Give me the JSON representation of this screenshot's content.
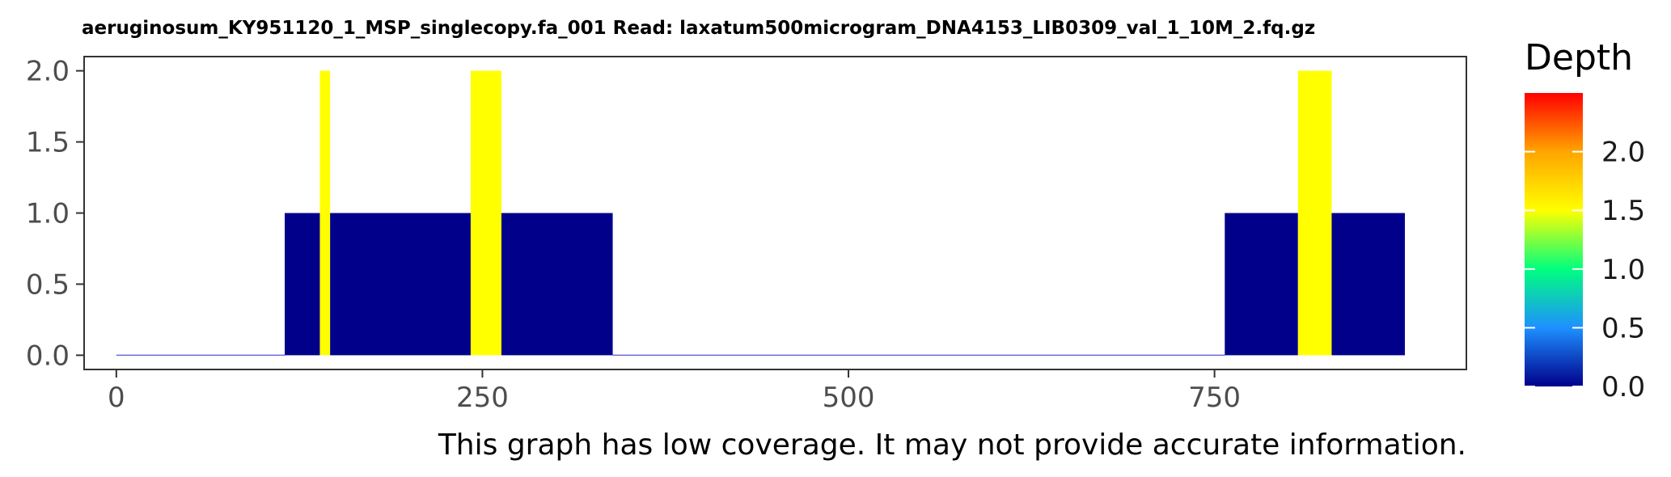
{
  "chart_data": {
    "type": "area",
    "title": "aeruginosum_KY951120_1_MSP_singlecopy.fa_001   Read: laxatum500microgram_DNA4153_LIB0309_val_1_10M_2.fq.gz",
    "caption": "This graph has low coverage. It may not provide accurate information.",
    "xlabel": "",
    "ylabel": "",
    "xlim": [
      -22,
      922
    ],
    "ylim": [
      -0.1,
      2.1
    ],
    "x_ticks": [
      "0",
      "250",
      "500",
      "750"
    ],
    "y_ticks": [
      "0.0",
      "0.5",
      "1.0",
      "1.5",
      "2.0"
    ],
    "grid": false,
    "segments": [
      {
        "x_start": 0,
        "x_end": 115,
        "depth": 0
      },
      {
        "x_start": 115,
        "x_end": 139,
        "depth": 1
      },
      {
        "x_start": 139,
        "x_end": 146,
        "depth": 2
      },
      {
        "x_start": 146,
        "x_end": 242,
        "depth": 1
      },
      {
        "x_start": 242,
        "x_end": 263,
        "depth": 2
      },
      {
        "x_start": 263,
        "x_end": 339,
        "depth": 1
      },
      {
        "x_start": 339,
        "x_end": 757,
        "depth": 0
      },
      {
        "x_start": 757,
        "x_end": 807,
        "depth": 1
      },
      {
        "x_start": 807,
        "x_end": 830,
        "depth": 2
      },
      {
        "x_start": 830,
        "x_end": 880,
        "depth": 1
      }
    ],
    "legend": {
      "title": "Depth",
      "position": "right",
      "ticks": [
        "0.0",
        "0.5",
        "1.0",
        "1.5",
        "2.0"
      ],
      "range": [
        0,
        2.5
      ],
      "colors": [
        "#00008b",
        "#1e90ff",
        "#00ff7f",
        "#ffff00",
        "#ffa500",
        "#ff0000"
      ]
    },
    "depth_colors": {
      "0": "#00008b",
      "1": "#00008b",
      "2": "#ffff00"
    },
    "baseline_color": "#6a6ad6",
    "panel_border_color": "#333333"
  }
}
